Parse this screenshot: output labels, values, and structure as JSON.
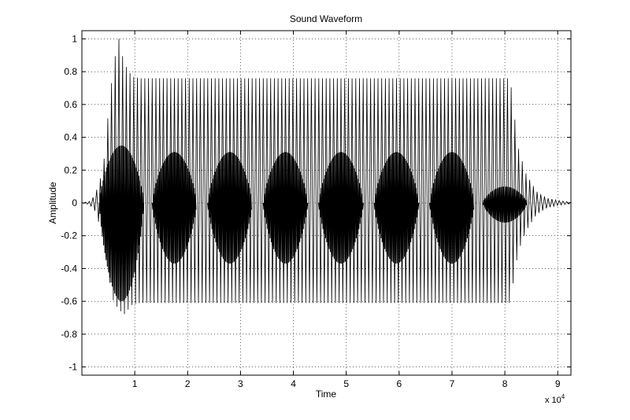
{
  "chart_data": {
    "type": "line",
    "title": "Sound Waveform",
    "xlabel": "Time",
    "ylabel": "Amplitude",
    "x_exponent_label": "x 10",
    "x_exponent_power": "4",
    "xlim": [
      0,
      92500
    ],
    "ylim": [
      -1.05,
      1.05
    ],
    "grid": true,
    "line_color": "#000000",
    "x_ticks": [
      1,
      2,
      3,
      4,
      5,
      6,
      7,
      8,
      9
    ],
    "y_ticks": [
      "1",
      "0.8",
      "0.6",
      "0.4",
      "0.2",
      "0",
      "-0.2",
      "-0.4",
      "-0.6",
      "-0.8",
      "-1"
    ],
    "y_tick_values": [
      1,
      0.8,
      0.6,
      0.4,
      0.2,
      0,
      -0.2,
      -0.4,
      -0.6,
      -0.8,
      -1
    ],
    "upper_envelope": {
      "x": [
        0,
        1500,
        2500,
        4000,
        5000,
        6000,
        7000,
        8000,
        9500,
        11000,
        81000,
        81500,
        82500,
        84000,
        86000,
        88000,
        90000,
        92500
      ],
      "y": [
        0.0,
        0.01,
        0.05,
        0.2,
        0.55,
        0.85,
        1.0,
        0.85,
        0.77,
        0.76,
        0.76,
        0.62,
        0.34,
        0.18,
        0.07,
        0.03,
        0.015,
        0.005
      ]
    },
    "lower_envelope": {
      "x": [
        0,
        1500,
        2500,
        4000,
        5000,
        6000,
        7000,
        8000,
        9500,
        11000,
        81000,
        81500,
        82500,
        84000,
        86000,
        88000,
        90000,
        92500
      ],
      "y": [
        0.0,
        -0.01,
        -0.05,
        -0.2,
        -0.45,
        -0.6,
        -0.65,
        -0.68,
        -0.62,
        -0.61,
        -0.61,
        -0.5,
        -0.3,
        -0.17,
        -0.07,
        -0.03,
        -0.015,
        -0.005
      ]
    },
    "dense_lobes": {
      "center_x": [
        7500,
        17500,
        28000,
        38500,
        49000,
        59500,
        70000,
        80000
      ],
      "upper_peak": [
        0.35,
        0.31,
        0.31,
        0.31,
        0.31,
        0.31,
        0.31,
        0.1
      ],
      "lower_peak": [
        -0.6,
        -0.37,
        -0.37,
        -0.37,
        -0.37,
        -0.37,
        -0.37,
        -0.12
      ]
    },
    "oscillation_period": 700
  }
}
